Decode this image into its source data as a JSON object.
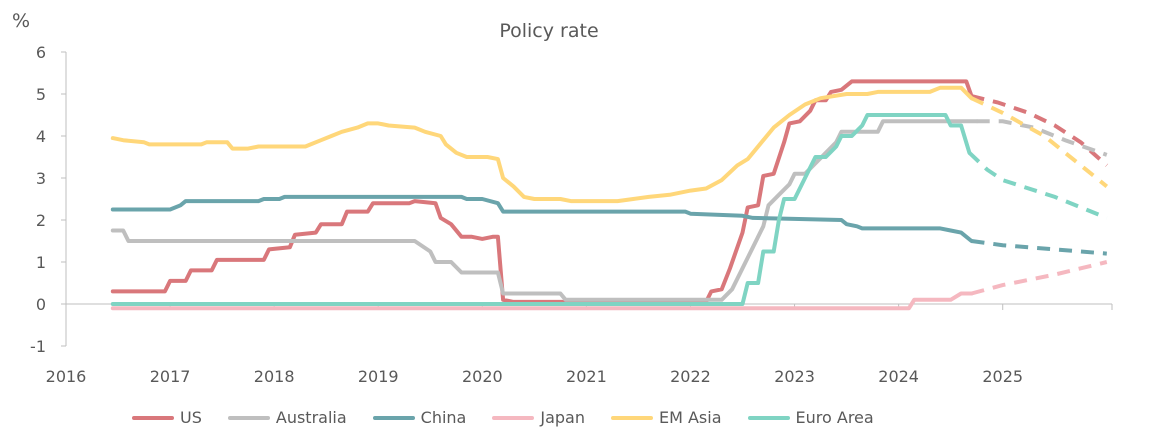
{
  "chart_data": {
    "type": "line",
    "title": "Policy rate",
    "ylabel": "%",
    "ylim": [
      -1,
      6
    ],
    "xlim": [
      2016,
      2026.05
    ],
    "yticks": [
      "-1",
      "0",
      "1",
      "2",
      "3",
      "4",
      "5",
      "6"
    ],
    "xticks": [
      "2016",
      "2017",
      "2018",
      "2019",
      "2020",
      "2021",
      "2022",
      "2023",
      "2024",
      "2025"
    ],
    "grid": false,
    "legend_position": "bottom",
    "series": [
      {
        "name": "US",
        "color": "#d9777b",
        "values": [
          [
            2016.45,
            0.3
          ],
          [
            2016.95,
            0.3
          ],
          [
            2017.0,
            0.55
          ],
          [
            2017.15,
            0.55
          ],
          [
            2017.2,
            0.8
          ],
          [
            2017.4,
            0.8
          ],
          [
            2017.45,
            1.05
          ],
          [
            2017.9,
            1.05
          ],
          [
            2017.95,
            1.3
          ],
          [
            2018.15,
            1.35
          ],
          [
            2018.2,
            1.65
          ],
          [
            2018.4,
            1.7
          ],
          [
            2018.45,
            1.9
          ],
          [
            2018.65,
            1.9
          ],
          [
            2018.7,
            2.2
          ],
          [
            2018.9,
            2.2
          ],
          [
            2018.95,
            2.4
          ],
          [
            2019.3,
            2.4
          ],
          [
            2019.35,
            2.45
          ],
          [
            2019.55,
            2.4
          ],
          [
            2019.6,
            2.05
          ],
          [
            2019.7,
            1.9
          ],
          [
            2019.8,
            1.6
          ],
          [
            2019.9,
            1.6
          ],
          [
            2020.0,
            1.55
          ],
          [
            2020.1,
            1.6
          ],
          [
            2020.15,
            1.6
          ],
          [
            2020.2,
            0.1
          ],
          [
            2020.3,
            0.05
          ],
          [
            2022.15,
            0.05
          ],
          [
            2022.2,
            0.3
          ],
          [
            2022.3,
            0.35
          ],
          [
            2022.38,
            0.85
          ],
          [
            2022.5,
            1.7
          ],
          [
            2022.55,
            2.3
          ],
          [
            2022.65,
            2.35
          ],
          [
            2022.7,
            3.05
          ],
          [
            2022.8,
            3.1
          ],
          [
            2022.9,
            3.85
          ],
          [
            2022.95,
            4.3
          ],
          [
            2023.05,
            4.35
          ],
          [
            2023.15,
            4.6
          ],
          [
            2023.2,
            4.85
          ],
          [
            2023.3,
            4.85
          ],
          [
            2023.35,
            5.05
          ],
          [
            2023.45,
            5.1
          ],
          [
            2023.55,
            5.3
          ],
          [
            2024.65,
            5.3
          ],
          [
            2024.7,
            4.95
          ]
        ],
        "forecast": [
          [
            2024.7,
            4.95
          ],
          [
            2024.95,
            4.8
          ],
          [
            2025.25,
            4.55
          ],
          [
            2025.5,
            4.25
          ],
          [
            2025.75,
            3.85
          ],
          [
            2026.0,
            3.3
          ]
        ]
      },
      {
        "name": "Australia",
        "color": "#bfbfbf",
        "values": [
          [
            2016.45,
            1.75
          ],
          [
            2016.55,
            1.75
          ],
          [
            2016.6,
            1.5
          ],
          [
            2019.35,
            1.5
          ],
          [
            2019.5,
            1.25
          ],
          [
            2019.55,
            1.0
          ],
          [
            2019.7,
            1.0
          ],
          [
            2019.8,
            0.75
          ],
          [
            2020.15,
            0.75
          ],
          [
            2020.2,
            0.25
          ],
          [
            2020.75,
            0.25
          ],
          [
            2020.8,
            0.1
          ],
          [
            2022.3,
            0.1
          ],
          [
            2022.4,
            0.35
          ],
          [
            2022.5,
            0.85
          ],
          [
            2022.6,
            1.35
          ],
          [
            2022.7,
            1.85
          ],
          [
            2022.75,
            2.35
          ],
          [
            2022.85,
            2.6
          ],
          [
            2022.95,
            2.85
          ],
          [
            2023.0,
            3.1
          ],
          [
            2023.1,
            3.1
          ],
          [
            2023.2,
            3.35
          ],
          [
            2023.3,
            3.6
          ],
          [
            2023.4,
            3.85
          ],
          [
            2023.45,
            4.1
          ],
          [
            2023.8,
            4.1
          ],
          [
            2023.85,
            4.35
          ],
          [
            2024.75,
            4.35
          ]
        ],
        "forecast": [
          [
            2024.75,
            4.35
          ],
          [
            2025.0,
            4.35
          ],
          [
            2025.3,
            4.2
          ],
          [
            2025.6,
            3.9
          ],
          [
            2026.0,
            3.55
          ]
        ]
      },
      {
        "name": "China",
        "color": "#6aa4ab",
        "values": [
          [
            2016.45,
            2.25
          ],
          [
            2017.0,
            2.25
          ],
          [
            2017.1,
            2.35
          ],
          [
            2017.15,
            2.45
          ],
          [
            2017.85,
            2.45
          ],
          [
            2017.9,
            2.5
          ],
          [
            2018.05,
            2.5
          ],
          [
            2018.1,
            2.55
          ],
          [
            2019.8,
            2.55
          ],
          [
            2019.85,
            2.5
          ],
          [
            2020.0,
            2.5
          ],
          [
            2020.15,
            2.4
          ],
          [
            2020.2,
            2.2
          ],
          [
            2021.95,
            2.2
          ],
          [
            2022.0,
            2.15
          ],
          [
            2022.5,
            2.1
          ],
          [
            2022.6,
            2.05
          ],
          [
            2023.45,
            2.0
          ],
          [
            2023.5,
            1.9
          ],
          [
            2023.6,
            1.85
          ],
          [
            2023.65,
            1.8
          ],
          [
            2024.4,
            1.8
          ],
          [
            2024.5,
            1.75
          ],
          [
            2024.6,
            1.7
          ],
          [
            2024.7,
            1.5
          ]
        ],
        "forecast": [
          [
            2024.7,
            1.5
          ],
          [
            2025.0,
            1.4
          ],
          [
            2025.5,
            1.3
          ],
          [
            2026.0,
            1.2
          ]
        ]
      },
      {
        "name": "Japan",
        "color": "#f5b8c0",
        "values": [
          [
            2016.45,
            -0.1
          ],
          [
            2024.1,
            -0.1
          ],
          [
            2024.15,
            0.1
          ],
          [
            2024.5,
            0.1
          ],
          [
            2024.6,
            0.25
          ],
          [
            2024.7,
            0.25
          ]
        ],
        "forecast": [
          [
            2024.7,
            0.25
          ],
          [
            2025.0,
            0.45
          ],
          [
            2025.5,
            0.7
          ],
          [
            2026.0,
            1.0
          ]
        ]
      },
      {
        "name": "EM Asia",
        "color": "#ffd77a",
        "values": [
          [
            2016.45,
            3.95
          ],
          [
            2016.55,
            3.9
          ],
          [
            2016.75,
            3.85
          ],
          [
            2016.8,
            3.8
          ],
          [
            2017.3,
            3.8
          ],
          [
            2017.35,
            3.85
          ],
          [
            2017.55,
            3.85
          ],
          [
            2017.6,
            3.7
          ],
          [
            2017.75,
            3.7
          ],
          [
            2017.85,
            3.75
          ],
          [
            2018.3,
            3.75
          ],
          [
            2018.35,
            3.8
          ],
          [
            2018.45,
            3.9
          ],
          [
            2018.55,
            4.0
          ],
          [
            2018.65,
            4.1
          ],
          [
            2018.8,
            4.2
          ],
          [
            2018.9,
            4.3
          ],
          [
            2019.0,
            4.3
          ],
          [
            2019.1,
            4.25
          ],
          [
            2019.35,
            4.2
          ],
          [
            2019.45,
            4.1
          ],
          [
            2019.6,
            4.0
          ],
          [
            2019.65,
            3.8
          ],
          [
            2019.75,
            3.6
          ],
          [
            2019.85,
            3.5
          ],
          [
            2020.05,
            3.5
          ],
          [
            2020.15,
            3.45
          ],
          [
            2020.2,
            3.0
          ],
          [
            2020.3,
            2.8
          ],
          [
            2020.4,
            2.55
          ],
          [
            2020.5,
            2.5
          ],
          [
            2020.75,
            2.5
          ],
          [
            2020.85,
            2.45
          ],
          [
            2021.3,
            2.45
          ],
          [
            2021.45,
            2.5
          ],
          [
            2021.6,
            2.55
          ],
          [
            2021.8,
            2.6
          ],
          [
            2022.0,
            2.7
          ],
          [
            2022.15,
            2.75
          ],
          [
            2022.3,
            2.95
          ],
          [
            2022.45,
            3.3
          ],
          [
            2022.55,
            3.45
          ],
          [
            2022.7,
            3.9
          ],
          [
            2022.8,
            4.2
          ],
          [
            2022.95,
            4.5
          ],
          [
            2023.1,
            4.75
          ],
          [
            2023.25,
            4.9
          ],
          [
            2023.5,
            5.0
          ],
          [
            2023.7,
            5.0
          ],
          [
            2023.8,
            5.05
          ],
          [
            2024.3,
            5.05
          ],
          [
            2024.4,
            5.15
          ],
          [
            2024.6,
            5.15
          ],
          [
            2024.7,
            4.9
          ]
        ],
        "forecast": [
          [
            2024.7,
            4.9
          ],
          [
            2025.0,
            4.55
          ],
          [
            2025.4,
            4.0
          ],
          [
            2025.7,
            3.4
          ],
          [
            2026.0,
            2.8
          ]
        ]
      },
      {
        "name": "Euro Area",
        "color": "#7fd4c3",
        "values": [
          [
            2016.45,
            0.0
          ],
          [
            2022.5,
            0.0
          ],
          [
            2022.55,
            0.5
          ],
          [
            2022.65,
            0.5
          ],
          [
            2022.7,
            1.25
          ],
          [
            2022.8,
            1.25
          ],
          [
            2022.85,
            2.0
          ],
          [
            2022.9,
            2.5
          ],
          [
            2023.0,
            2.5
          ],
          [
            2023.1,
            3.0
          ],
          [
            2023.2,
            3.5
          ],
          [
            2023.3,
            3.5
          ],
          [
            2023.4,
            3.75
          ],
          [
            2023.45,
            4.0
          ],
          [
            2023.55,
            4.0
          ],
          [
            2023.65,
            4.25
          ],
          [
            2023.7,
            4.5
          ],
          [
            2024.45,
            4.5
          ],
          [
            2024.5,
            4.25
          ],
          [
            2024.6,
            4.25
          ],
          [
            2024.68,
            3.6
          ]
        ],
        "forecast": [
          [
            2024.68,
            3.6
          ],
          [
            2024.85,
            3.2
          ],
          [
            2025.0,
            2.95
          ],
          [
            2025.5,
            2.55
          ],
          [
            2026.0,
            2.05
          ]
        ]
      }
    ]
  }
}
